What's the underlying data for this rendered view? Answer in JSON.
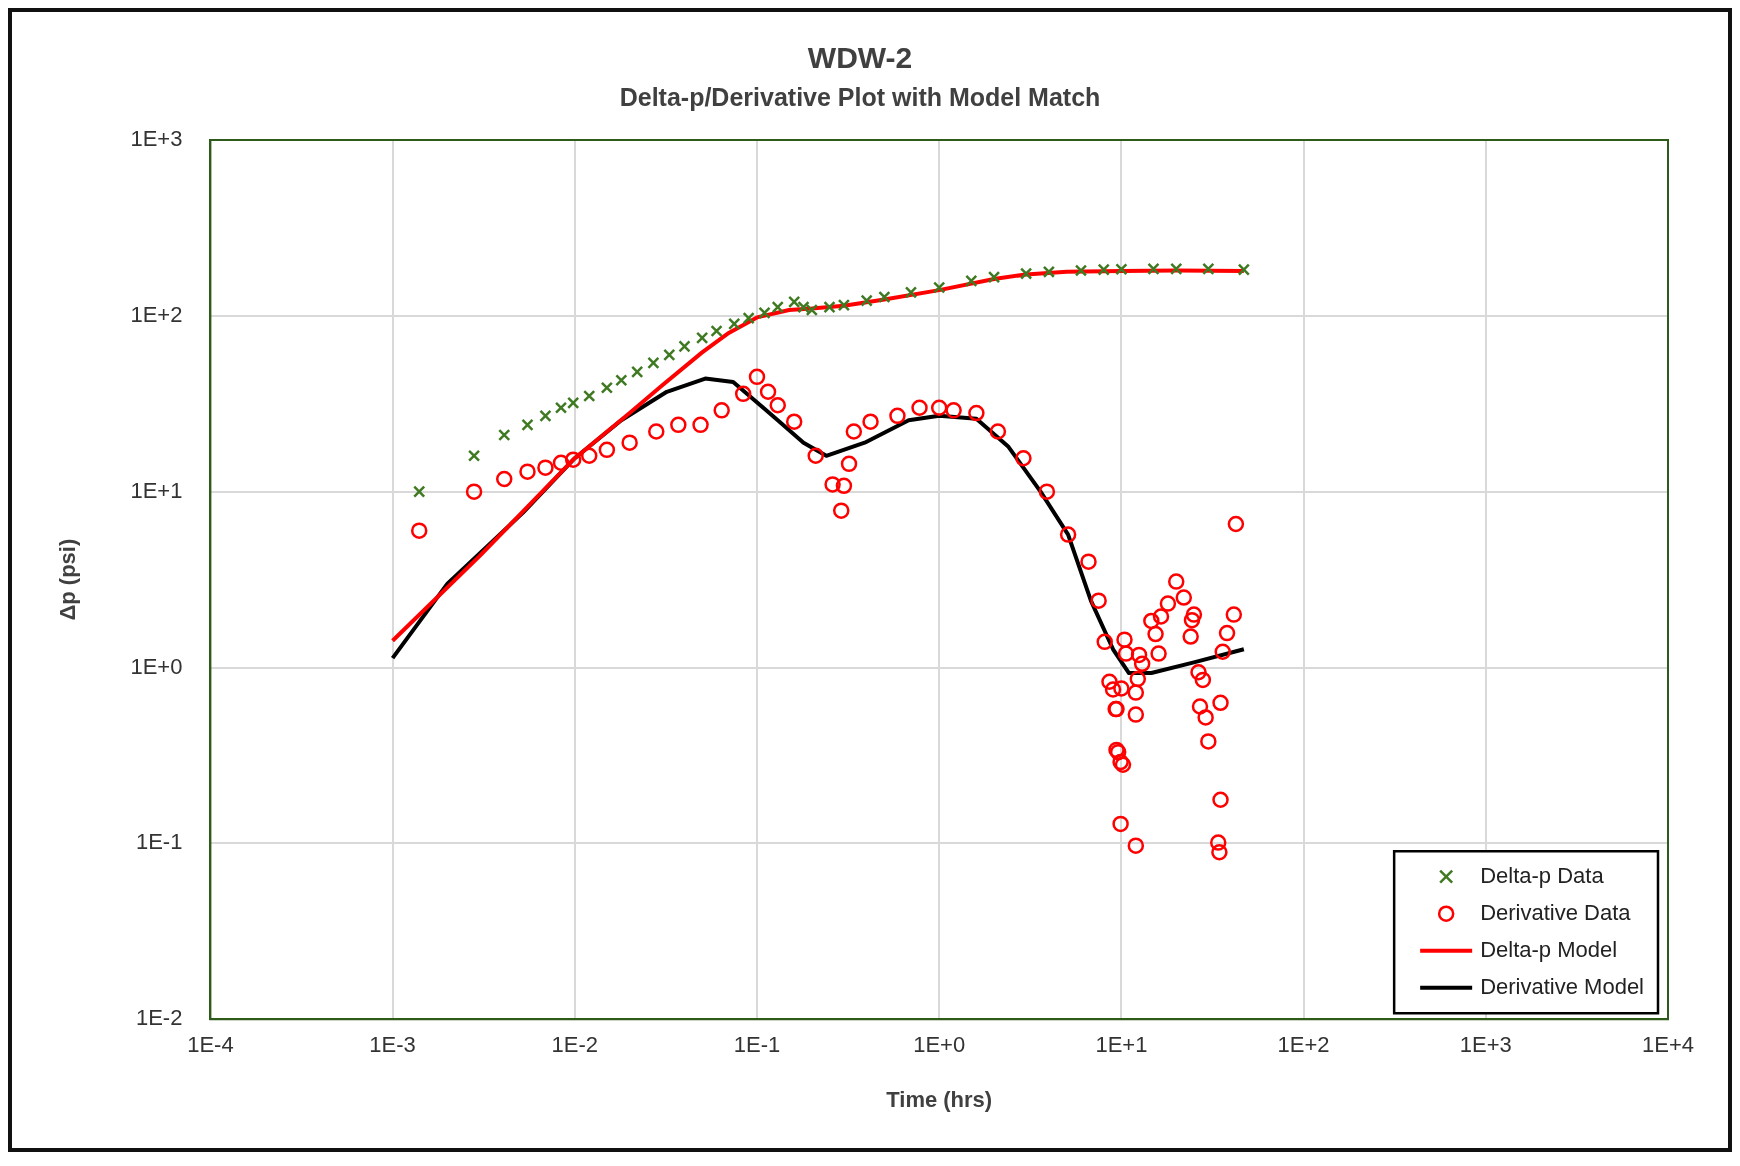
{
  "chart_data": {
    "type": "scatter",
    "title": "WDW-2",
    "subtitle": "Delta-p/Derivative Plot with Model Match",
    "xlabel": "Time (hrs)",
    "ylabel": "Δp (psi)",
    "log": "xy",
    "grid": true,
    "legend": "bottom right",
    "xlim": [
      0.0001,
      10000
    ],
    "ylim": [
      0.01,
      1000
    ],
    "xticks": [
      {
        "value": 0.0001,
        "label": "1E-4"
      },
      {
        "value": 0.001,
        "label": "1E-3"
      },
      {
        "value": 0.01,
        "label": "1E-2"
      },
      {
        "value": 0.1,
        "label": "1E-1"
      },
      {
        "value": 1,
        "label": "1E+0"
      },
      {
        "value": 10,
        "label": "1E+1"
      },
      {
        "value": 100,
        "label": "1E+2"
      },
      {
        "value": 1000,
        "label": "1E+3"
      },
      {
        "value": 10000,
        "label": "1E+4"
      }
    ],
    "yticks": [
      {
        "value": 0.01,
        "label": "1E-2"
      },
      {
        "value": 0.1,
        "label": "1E-1"
      },
      {
        "value": 1,
        "label": "1E+0"
      },
      {
        "value": 10,
        "label": "1E+1"
      },
      {
        "value": 100,
        "label": "1E+2"
      },
      {
        "value": 1000,
        "label": "1E+3"
      }
    ],
    "series": [
      {
        "name": "Delta-p Data",
        "marker": "cross",
        "color": "#3f7a23",
        "x": [
          0.0014,
          0.0028,
          0.0041,
          0.0055,
          0.0069,
          0.0084,
          0.0098,
          0.012,
          0.015,
          0.018,
          0.022,
          0.027,
          0.033,
          0.04,
          0.05,
          0.06,
          0.075,
          0.09,
          0.11,
          0.13,
          0.16,
          0.18,
          0.2,
          0.25,
          0.3,
          0.4,
          0.5,
          0.7,
          1,
          1.5,
          2,
          3,
          4,
          6,
          8,
          10,
          15,
          20,
          30,
          47
        ],
        "values": [
          10,
          16,
          21,
          24,
          27,
          30,
          32,
          35,
          39,
          43,
          48,
          54,
          60,
          67,
          75,
          82,
          90,
          97,
          104,
          112,
          120,
          112,
          108,
          112,
          115,
          122,
          128,
          136,
          145,
          158,
          166,
          174,
          178,
          181,
          183,
          184,
          185,
          185,
          185,
          183
        ]
      },
      {
        "name": "Derivative Data",
        "marker": "circle",
        "color": "#ff0000",
        "x": [
          0.0014,
          0.0028,
          0.0041,
          0.0055,
          0.0069,
          0.0084,
          0.0098,
          0.012,
          0.015,
          0.02,
          0.028,
          0.037,
          0.049,
          0.064,
          0.084,
          0.1,
          0.115,
          0.13,
          0.16,
          0.21,
          0.26,
          0.29,
          0.3,
          0.32,
          0.34,
          0.42,
          0.59,
          0.78,
          1.0,
          1.2,
          1.6,
          2.1,
          2.9,
          3.9,
          5.1,
          6.6,
          7.5,
          8.1,
          8.6,
          9.0,
          9.3,
          9.4,
          9.4,
          9.6,
          9.9,
          9.9,
          10,
          10.2,
          10.4,
          10.6,
          12,
          12,
          12,
          12.3,
          12.5,
          13,
          14.6,
          15.4,
          16,
          16.5,
          18,
          20,
          22,
          24,
          24.4,
          25,
          26.5,
          27,
          28,
          29,
          30,
          34,
          34.5,
          35,
          35,
          36,
          38,
          41.4,
          42.5
        ],
        "values": [
          6,
          10,
          11.8,
          13,
          13.7,
          14.6,
          15.2,
          16,
          17.3,
          19,
          22,
          24,
          24,
          29,
          36,
          45,
          37,
          31,
          25,
          16,
          11,
          7.8,
          10.8,
          14.4,
          22,
          25,
          27,
          30,
          30,
          29,
          28,
          22,
          15.5,
          10,
          5.7,
          4,
          2.4,
          1.4,
          0.83,
          0.75,
          0.58,
          0.58,
          0.34,
          0.33,
          0.29,
          0.129,
          0.76,
          0.28,
          1.44,
          1.2,
          0.72,
          0.54,
          0.097,
          0.86,
          1.18,
          1.05,
          1.84,
          1.55,
          1.2,
          1.95,
          2.31,
          3.08,
          2.5,
          1.5,
          1.86,
          2.0,
          0.94,
          0.6,
          0.85,
          0.52,
          0.38,
          0.101,
          0.089,
          0.177,
          0.63,
          1.23,
          1.57,
          2.0,
          6.55
        ]
      },
      {
        "name": "Delta-p Model",
        "type": "line",
        "marker": "none",
        "color": "#ff0000",
        "x": [
          0.001,
          0.003,
          0.01,
          0.02,
          0.03,
          0.05,
          0.07,
          0.1,
          0.15,
          0.2,
          0.3,
          0.5,
          1,
          2,
          3,
          5,
          10,
          20,
          47
        ],
        "values": [
          1.42,
          4.3,
          15.5,
          28,
          40,
          62,
          80,
          98,
          108,
          110,
          114,
          124,
          140,
          162,
          172,
          178,
          180,
          181,
          180
        ]
      },
      {
        "name": "Derivative Model",
        "type": "line",
        "marker": "none",
        "color": "#000000",
        "x": [
          0.001,
          0.002,
          0.0052,
          0.01,
          0.018,
          0.032,
          0.052,
          0.074,
          0.13,
          0.18,
          0.24,
          0.39,
          0.68,
          1.0,
          1.6,
          2.4,
          3.6,
          5.1,
          6.8,
          9,
          11,
          14.6,
          25,
          47
        ],
        "values": [
          1.13,
          3,
          7.6,
          15.5,
          25.5,
          37,
          44,
          42,
          25.5,
          19,
          16,
          19,
          25.5,
          27,
          26,
          18,
          10,
          5.7,
          2.4,
          1.27,
          0.93,
          0.93,
          1.07,
          1.27
        ]
      }
    ]
  }
}
